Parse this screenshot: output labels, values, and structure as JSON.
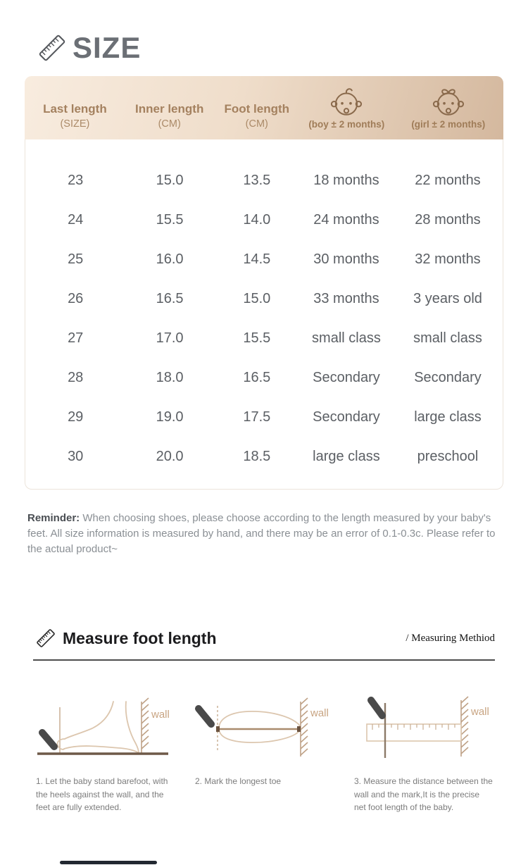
{
  "size_section": {
    "title": "SIZE",
    "table": {
      "headers": [
        {
          "line1": "Last length",
          "line2": "(SIZE)"
        },
        {
          "line1": "Inner length",
          "line2": "(CM)"
        },
        {
          "line1": "Foot length",
          "line2": "(CM)"
        },
        {
          "icon": "baby-boy-icon",
          "label": "(boy ± 2 months)"
        },
        {
          "icon": "baby-girl-icon",
          "label": "(girl ± 2 months)"
        }
      ],
      "rows": [
        [
          "23",
          "15.0",
          "13.5",
          "18 months",
          "22 months"
        ],
        [
          "24",
          "15.5",
          "14.0",
          "24 months",
          "28 months"
        ],
        [
          "25",
          "16.0",
          "14.5",
          "30 months",
          "32 months"
        ],
        [
          "26",
          "16.5",
          "15.0",
          "33 months",
          "3 years old"
        ],
        [
          "27",
          "17.0",
          "15.5",
          "small class",
          "small class"
        ],
        [
          "28",
          "18.0",
          "16.5",
          "Secondary",
          "Secondary"
        ],
        [
          "29",
          "19.0",
          "17.5",
          "Secondary",
          "large class"
        ],
        [
          "30",
          "20.0",
          "18.5",
          "large class",
          "preschool"
        ]
      ]
    },
    "reminder_bold": "Reminder:",
    "reminder_text": " When choosing shoes, please choose according to the length measured by your baby's feet. All size information is measured by hand, and there may be an error of 0.1-0.3c. Please refer to the actual product~"
  },
  "measure_section": {
    "title": "Measure foot length",
    "subtitle": "/ Measuring Methiod",
    "steps": [
      {
        "wall_label": "wall",
        "caption": "1. Let the baby stand barefoot, with the heels against the wall, and the feet are fully extended."
      },
      {
        "wall_label": "wall",
        "caption": "2. Mark the longest toe"
      },
      {
        "wall_label": "wall",
        "caption": "3. Measure the distance between the wall and the mark,It is the precise net foot length of  the baby."
      }
    ]
  },
  "colors": {
    "header_gradient_start": "#f8ecdf",
    "header_gradient_end": "#d4b89e",
    "header_text": "#a4815f",
    "body_text": "#5b5f64",
    "title_gray": "#6b6f75",
    "wall_label": "#c8a482",
    "diagram_line": "#dcc6ae",
    "pencil": "#4a4a4a"
  }
}
